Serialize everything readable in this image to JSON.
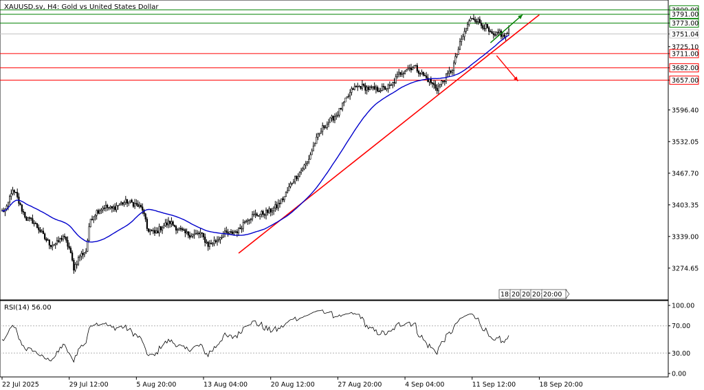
{
  "chart_data": [
    {
      "type": "candlestick",
      "title": "XAUUSD.sv, H4:  Gold vs United States Dollar",
      "yticks": [
        3800.0,
        3791.0,
        3773.0,
        3751.04,
        3725.1,
        3711.0,
        3682.0,
        3657.0,
        3596.4,
        3532.05,
        3467.7,
        3403.35,
        3339.0,
        3274.65
      ],
      "ytick_labels": [
        "3800.00",
        "3791.00",
        "3773.00",
        "3751.04",
        "3725.10",
        "3711.00",
        "3682.00",
        "3657.00",
        "3596.40",
        "3532.05",
        "3467.70",
        "3403.35",
        "3339.00",
        "3274.65"
      ],
      "ylim": [
        3210,
        3820
      ],
      "resistance_levels": [
        3800.0,
        3791.0,
        3773.0
      ],
      "support_levels": [
        3711.0,
        3682.0,
        3657.0
      ],
      "current_price": "3751.04",
      "current_value": 3751.04,
      "colors": {
        "resistance": "#008000",
        "support": "#ff0000",
        "trendline": "#ff0000",
        "ma": "#0000cc",
        "candle": "#000000",
        "up_arrow": "#008000",
        "down_arrow": "#ff0000"
      },
      "trendlines": [
        {
          "from_bar": 155,
          "from_value": 3305,
          "to_bar": 352,
          "to_value": 3790
        }
      ],
      "arrows": [
        {
          "direction": "up",
          "from_bar": 320,
          "from_value": 3733,
          "to_bar": 341,
          "to_value": 3790
        },
        {
          "direction": "down",
          "from_bar": 324,
          "from_value": 3707,
          "to_bar": 338,
          "to_value": 3655
        }
      ],
      "scroll_tabs": [
        "18:",
        "20",
        "20",
        "20:",
        "20:00"
      ],
      "anchor_points": [
        [
          0,
          3390
        ],
        [
          3,
          3395
        ],
        [
          6,
          3430
        ],
        [
          9,
          3425
        ],
        [
          12,
          3400
        ],
        [
          16,
          3375
        ],
        [
          20,
          3370
        ],
        [
          24,
          3355
        ],
        [
          28,
          3335
        ],
        [
          32,
          3322
        ],
        [
          36,
          3325
        ],
        [
          40,
          3340
        ],
        [
          44,
          3315
        ],
        [
          47,
          3275
        ],
        [
          51,
          3300
        ],
        [
          55,
          3310
        ],
        [
          58,
          3375
        ],
        [
          62,
          3390
        ],
        [
          67,
          3400
        ],
        [
          72,
          3395
        ],
        [
          77,
          3405
        ],
        [
          82,
          3410
        ],
        [
          87,
          3405
        ],
        [
          92,
          3395
        ],
        [
          95,
          3355
        ],
        [
          100,
          3345
        ],
        [
          105,
          3360
        ],
        [
          110,
          3368
        ],
        [
          115,
          3355
        ],
        [
          120,
          3345
        ],
        [
          125,
          3342
        ],
        [
          130,
          3345
        ],
        [
          135,
          3322
        ],
        [
          140,
          3330
        ],
        [
          145,
          3345
        ],
        [
          150,
          3345
        ],
        [
          155,
          3352
        ],
        [
          160,
          3375
        ],
        [
          165,
          3382
        ],
        [
          170,
          3385
        ],
        [
          175,
          3390
        ],
        [
          180,
          3400
        ],
        [
          185,
          3420
        ],
        [
          190,
          3450
        ],
        [
          195,
          3470
        ],
        [
          200,
          3490
        ],
        [
          205,
          3530
        ],
        [
          210,
          3560
        ],
        [
          215,
          3575
        ],
        [
          220,
          3590
        ],
        [
          225,
          3615
        ],
        [
          230,
          3640
        ],
        [
          235,
          3645
        ],
        [
          240,
          3640
        ],
        [
          245,
          3638
        ],
        [
          250,
          3640
        ],
        [
          255,
          3645
        ],
        [
          260,
          3670
        ],
        [
          265,
          3680
        ],
        [
          270,
          3685
        ],
        [
          275,
          3670
        ],
        [
          280,
          3655
        ],
        [
          285,
          3640
        ],
        [
          290,
          3660
        ],
        [
          295,
          3680
        ],
        [
          300,
          3730
        ],
        [
          305,
          3770
        ],
        [
          308,
          3785
        ],
        [
          311,
          3780
        ],
        [
          314,
          3770
        ],
        [
          317,
          3765
        ],
        [
          320,
          3750
        ],
        [
          323,
          3745
        ],
        [
          326,
          3755
        ],
        [
          328,
          3745
        ],
        [
          332,
          3755
        ]
      ]
    },
    {
      "type": "line",
      "title": "RSI(14) 56.00",
      "current_value": 56.0,
      "yticks": [
        100.0,
        70.0,
        30.0,
        0.0
      ],
      "ytick_labels": [
        "100.00",
        "70.00",
        "30.00",
        "0.00"
      ],
      "ylim": [
        0,
        100
      ],
      "levels": [
        70,
        30
      ],
      "xtick_labels": [
        "22 Jul 2025",
        "29 Jul 12:00",
        "5 Aug 20:00",
        "13 Aug 04:00",
        "20 Aug 12:00",
        "27 Aug 20:00",
        "4 Sep 04:00",
        "11 Sep 12:00",
        "18 Sep 20:00"
      ],
      "xtick_bars": [
        0,
        44,
        88,
        132,
        176,
        220,
        264,
        308,
        352
      ]
    }
  ]
}
